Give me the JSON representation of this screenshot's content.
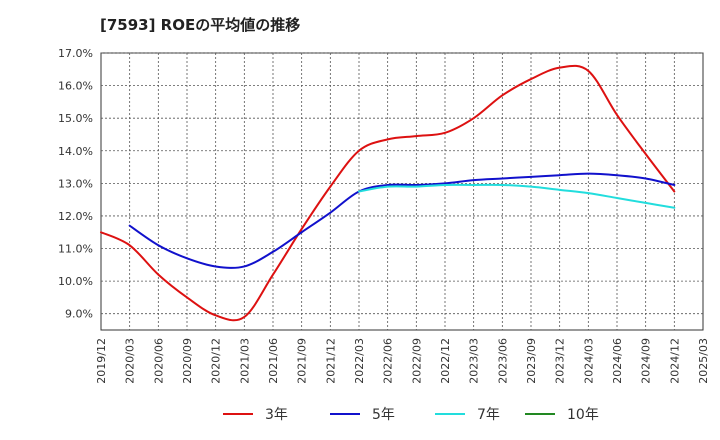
{
  "chart_data": {
    "type": "line",
    "title": "[7593]  ROEの平均値の推移",
    "xlabel": "",
    "ylabel": "",
    "ylim": [
      8.5,
      17.0
    ],
    "yticks": [
      9.0,
      10.0,
      11.0,
      12.0,
      13.0,
      14.0,
      15.0,
      16.0,
      17.0
    ],
    "ytick_labels": [
      "9.0%",
      "10.0%",
      "11.0%",
      "12.0%",
      "13.0%",
      "14.0%",
      "15.0%",
      "16.0%",
      "17.0%"
    ],
    "xticks": [
      "2019/12",
      "2020/03",
      "2020/06",
      "2020/09",
      "2020/12",
      "2021/03",
      "2021/06",
      "2021/09",
      "2021/12",
      "2022/03",
      "2022/06",
      "2022/09",
      "2022/12",
      "2023/03",
      "2023/06",
      "2023/09",
      "2023/12",
      "2024/03",
      "2024/06",
      "2024/09",
      "2024/12",
      "2025/03"
    ],
    "grid": true,
    "legend_position": "bottom",
    "series": [
      {
        "name": "3年",
        "color": "#dd1111",
        "points": [
          [
            0,
            11.5
          ],
          [
            1,
            11.1
          ],
          [
            2,
            10.2
          ],
          [
            3,
            9.5
          ],
          [
            4,
            8.95
          ],
          [
            5,
            8.9
          ],
          [
            6,
            10.2
          ],
          [
            7,
            11.6
          ],
          [
            8,
            12.9
          ],
          [
            9,
            14.0
          ],
          [
            10,
            14.35
          ],
          [
            11,
            14.45
          ],
          [
            12,
            14.55
          ],
          [
            13,
            15.0
          ],
          [
            14,
            15.7
          ],
          [
            15,
            16.2
          ],
          [
            16,
            16.55
          ],
          [
            17,
            16.45
          ],
          [
            18,
            15.1
          ],
          [
            19,
            13.9
          ],
          [
            20,
            12.75
          ]
        ]
      },
      {
        "name": "5年",
        "color": "#1111cc",
        "points": [
          [
            1,
            11.7
          ],
          [
            2,
            11.1
          ],
          [
            3,
            10.7
          ],
          [
            4,
            10.45
          ],
          [
            5,
            10.45
          ],
          [
            6,
            10.9
          ],
          [
            7,
            11.5
          ],
          [
            8,
            12.1
          ],
          [
            9,
            12.75
          ],
          [
            10,
            12.95
          ],
          [
            11,
            12.95
          ],
          [
            12,
            13.0
          ],
          [
            13,
            13.1
          ],
          [
            14,
            13.15
          ],
          [
            15,
            13.2
          ],
          [
            16,
            13.25
          ],
          [
            17,
            13.3
          ],
          [
            18,
            13.25
          ],
          [
            19,
            13.15
          ],
          [
            20,
            12.95
          ]
        ]
      },
      {
        "name": "7年",
        "color": "#22dddd",
        "points": [
          [
            9,
            12.75
          ],
          [
            10,
            12.9
          ],
          [
            11,
            12.9
          ],
          [
            12,
            12.95
          ],
          [
            13,
            12.95
          ],
          [
            14,
            12.95
          ],
          [
            15,
            12.9
          ],
          [
            16,
            12.8
          ],
          [
            17,
            12.7
          ],
          [
            18,
            12.55
          ],
          [
            19,
            12.4
          ],
          [
            20,
            12.25
          ]
        ]
      },
      {
        "name": "10年",
        "color": "#228822",
        "points": []
      }
    ]
  }
}
